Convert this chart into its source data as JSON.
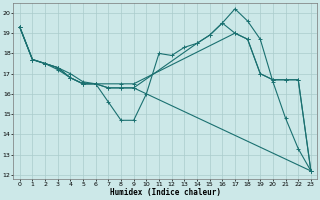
{
  "xlabel": "Humidex (Indice chaleur)",
  "ylabel": "",
  "xlim": [
    -0.5,
    23.5
  ],
  "ylim": [
    11.8,
    20.5
  ],
  "yticks": [
    12,
    13,
    14,
    15,
    16,
    17,
    18,
    19,
    20
  ],
  "xticks": [
    0,
    1,
    2,
    3,
    4,
    5,
    6,
    7,
    8,
    9,
    10,
    11,
    12,
    13,
    14,
    15,
    16,
    17,
    18,
    19,
    20,
    21,
    22,
    23
  ],
  "background_color": "#cce8e8",
  "grid_color": "#aacccc",
  "line_color": "#1a7070",
  "lines": [
    {
      "x": [
        0,
        1,
        2,
        3,
        4,
        5,
        6,
        7,
        8,
        9,
        10,
        11,
        12,
        13,
        14,
        15,
        16,
        17,
        18,
        19,
        20,
        21,
        22,
        23
      ],
      "y": [
        19.3,
        17.7,
        17.5,
        17.3,
        17.0,
        16.6,
        16.5,
        15.6,
        14.7,
        14.7,
        16.0,
        18.0,
        17.9,
        18.3,
        18.5,
        18.9,
        19.5,
        20.2,
        19.6,
        18.7,
        16.6,
        14.8,
        13.3,
        12.2
      ]
    },
    {
      "x": [
        0,
        1,
        2,
        3,
        4,
        5,
        6,
        8,
        9,
        17,
        18,
        19,
        20,
        21,
        22,
        23
      ],
      "y": [
        19.3,
        17.7,
        17.5,
        17.3,
        16.8,
        16.5,
        16.5,
        16.5,
        16.5,
        19.0,
        18.7,
        17.0,
        16.7,
        16.7,
        16.7,
        12.2
      ]
    },
    {
      "x": [
        0,
        1,
        2,
        3,
        4,
        5,
        6,
        7,
        8,
        9,
        23
      ],
      "y": [
        19.3,
        17.7,
        17.5,
        17.3,
        16.8,
        16.5,
        16.5,
        16.3,
        16.3,
        16.3,
        12.2
      ]
    },
    {
      "x": [
        0,
        1,
        2,
        3,
        4,
        5,
        6,
        7,
        8,
        9,
        14,
        15,
        16,
        17,
        18,
        19,
        20,
        21,
        22,
        23
      ],
      "y": [
        19.3,
        17.7,
        17.5,
        17.2,
        16.8,
        16.5,
        16.5,
        16.3,
        16.3,
        16.3,
        18.5,
        18.9,
        19.5,
        19.0,
        18.7,
        17.0,
        16.7,
        16.7,
        16.7,
        12.2
      ]
    }
  ]
}
